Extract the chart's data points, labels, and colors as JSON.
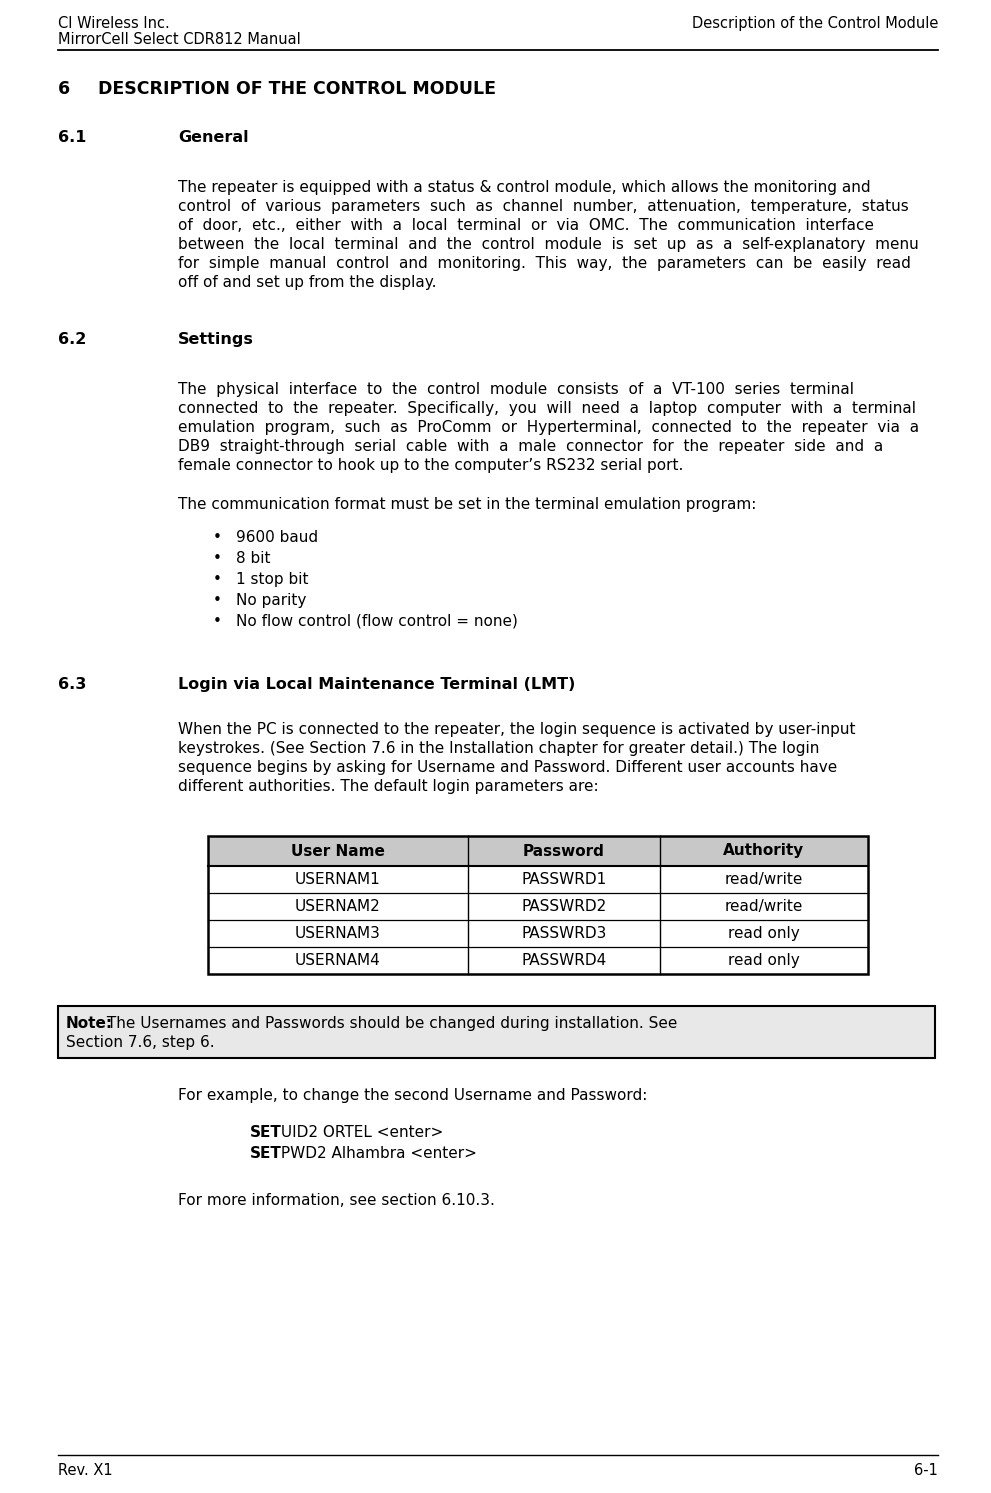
{
  "header_left_line1": "CI Wireless Inc.",
  "header_left_line2": "MirrorCell Select CDR812 Manual",
  "header_right": "Description of the Control Module",
  "footer_left": "Rev. X1",
  "footer_right": "6-1",
  "section_number": "6",
  "section_title": "DESCRIPTION OF THE CONTROL MODULE",
  "s61_label": "6.1",
  "s61_title": "General",
  "s61_lines": [
    "The repeater is equipped with a status & control module, which allows the monitoring and",
    "control  of  various  parameters  such  as  channel  number,  attenuation,  temperature,  status",
    "of  door,  etc.,  either  with  a  local  terminal  or  via  OMC.  The  communication  interface",
    "between  the  local  terminal  and  the  control  module  is  set  up  as  a  self-explanatory  menu",
    "for  simple  manual  control  and  monitoring.  This  way,  the  parameters  can  be  easily  read",
    "off of and set up from the display."
  ],
  "s62_label": "6.2",
  "s62_title": "Settings",
  "s62_lines": [
    "The  physical  interface  to  the  control  module  consists  of  a  VT-100  series  terminal",
    "connected  to  the  repeater.  Specifically,  you  will  need  a  laptop  computer  with  a  terminal",
    "emulation  program,  such  as  ProComm  or  Hyperterminal,  connected  to  the  repeater  via  a",
    "DB9  straight-through  serial  cable  with  a  male  connector  for  the  repeater  side  and  a",
    "female connector to hook up to the computer’s RS232 serial port."
  ],
  "s62_body2": "The communication format must be set in the terminal emulation program:",
  "s62_bullets": [
    "9600 baud",
    "8 bit",
    "1 stop bit",
    "No parity",
    "No flow control (flow control = none)"
  ],
  "s63_label": "6.3",
  "s63_title": "Login via Local Maintenance Terminal (LMT)",
  "s63_lines": [
    "When the PC is connected to the repeater, the login sequence is activated by user-input",
    "keystrokes. (See Section 7.6 in the Installation chapter for greater detail.) The login",
    "sequence begins by asking for Username and Password. Different user accounts have",
    "different authorities. The default login parameters are:"
  ],
  "table_headers": [
    "User Name",
    "Password",
    "Authority"
  ],
  "table_rows": [
    [
      "USERNAM1",
      "PASSWRD1",
      "read/write"
    ],
    [
      "USERNAM2",
      "PASSWRD2",
      "read/write"
    ],
    [
      "USERNAM3",
      "PASSWRD3",
      "read only"
    ],
    [
      "USERNAM4",
      "PASSWRD4",
      "read only"
    ]
  ],
  "note_bold": "Note:",
  "note_rest_line1": " The Usernames and Passwords should be changed during installation. See",
  "note_rest_line2": "Section 7.6, step 6.",
  "example_intro": "For example, to change the second Username and Password:",
  "ex1_bold": "SET",
  "ex1_rest": " UID2 ORTEL <enter>",
  "ex2_bold": "SET",
  "ex2_rest": " PWD2 Alhambra <enter>",
  "closing": "For more information, see section 6.10.3.",
  "bg_color": "#ffffff",
  "text_color": "#000000",
  "note_bg": "#e8e8e8",
  "table_header_bg": "#c8c8c8"
}
